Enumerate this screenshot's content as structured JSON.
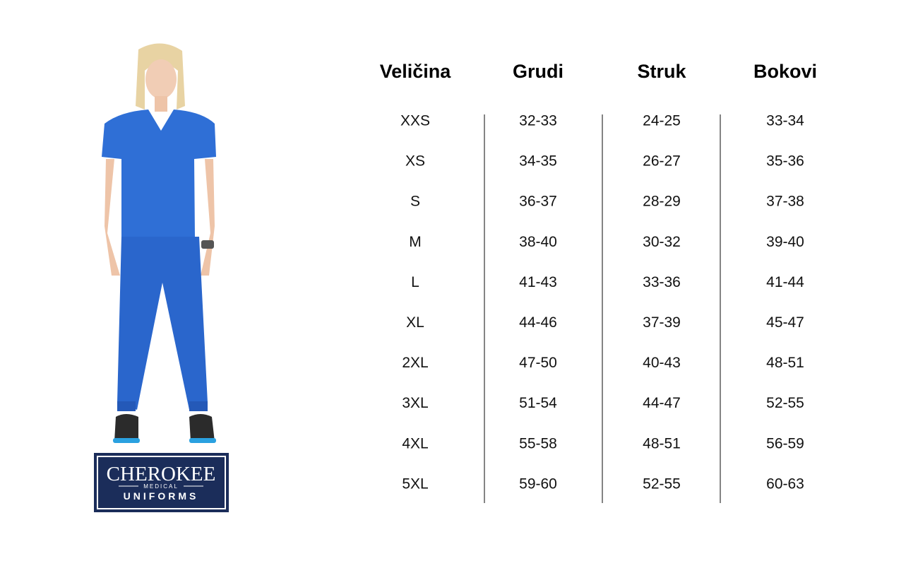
{
  "table": {
    "headers": [
      "Veličina",
      "Grudi",
      "Struk",
      "Bokovi"
    ],
    "rows": [
      [
        "XXS",
        "32-33",
        "24-25",
        "33-34"
      ],
      [
        "XS",
        "34-35",
        "26-27",
        "35-36"
      ],
      [
        "S",
        "36-37",
        "28-29",
        "37-38"
      ],
      [
        "M",
        "38-40",
        "30-32",
        "39-40"
      ],
      [
        "L",
        "41-43",
        "33-36",
        "41-44"
      ],
      [
        "XL",
        "44-46",
        "37-39",
        "45-47"
      ],
      [
        "2XL",
        "47-50",
        "40-43",
        "48-51"
      ],
      [
        "3XL",
        "51-54",
        "44-47",
        "52-55"
      ],
      [
        "4XL",
        "55-58",
        "48-51",
        "56-59"
      ],
      [
        "5XL",
        "59-60",
        "52-55",
        "60-63"
      ]
    ]
  },
  "logo": {
    "brand": "CHEROKEE",
    "sub": "MEDICAL",
    "line": "UNIFORMS"
  }
}
